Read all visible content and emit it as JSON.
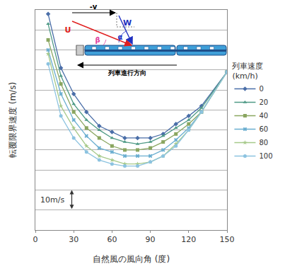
{
  "chart_data": {
    "type": "line",
    "x_label": "自然風の風向角 (度)",
    "y_label": "転覆限界速度 (m/s)",
    "legend_title": "列車速度\n(km/h)",
    "legend": "right",
    "grid": true,
    "tick_labels": "x",
    "x": [
      10,
      20,
      30,
      40,
      50,
      60,
      70,
      80,
      90,
      100,
      110,
      120,
      130,
      150
    ],
    "xlim": [
      0,
      150
    ],
    "xticks": [
      0,
      30,
      60,
      90,
      120,
      150
    ],
    "ylim": [
      0,
      110
    ],
    "yticks": [
      0,
      10,
      20,
      30,
      40,
      50,
      60,
      70,
      80,
      90,
      100,
      110
    ],
    "series": [
      {
        "name": "0",
        "color": "#4a6ea8",
        "marker": "diamond",
        "values": [
          108,
          81,
          68,
          59,
          52,
          49,
          46,
          46,
          46,
          48,
          53,
          57,
          62,
          79
        ]
      },
      {
        "name": "20",
        "color": "#4f9a86",
        "marker": "triangle-up",
        "values": [
          103,
          77,
          63,
          55,
          50,
          46,
          44,
          43,
          44,
          47,
          51,
          55,
          61,
          79
        ]
      },
      {
        "name": "40",
        "color": "#8aa660",
        "marker": "square",
        "values": [
          95,
          73,
          59,
          51,
          46,
          42,
          40,
          40,
          41,
          44,
          48,
          53,
          59,
          79
        ]
      },
      {
        "name": "60",
        "color": "#6aaed0",
        "marker": "x",
        "values": [
          90,
          68,
          55,
          47,
          41,
          39,
          37,
          37,
          37,
          40,
          45,
          51,
          59,
          79
        ]
      },
      {
        "name": "80",
        "color": "#a6c98a",
        "marker": "star",
        "values": [
          88,
          62,
          51,
          42,
          37,
          35,
          33,
          33,
          34,
          37,
          43,
          50,
          59,
          79
        ]
      },
      {
        "name": "100",
        "color": "#8cc3e0",
        "marker": "circle",
        "values": [
          83,
          57,
          46,
          39,
          35,
          33,
          32,
          32,
          34,
          37,
          42,
          50,
          59,
          79
        ]
      }
    ],
    "scale_bar": {
      "label": "10m/s",
      "length": 10
    },
    "annotations": [
      "-v",
      "W",
      "U",
      "α",
      "β",
      "列車進行方向"
    ]
  }
}
